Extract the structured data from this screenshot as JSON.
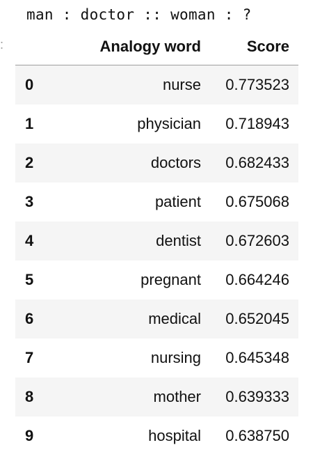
{
  "output": {
    "query": "man : doctor :: woman : ?",
    "edge_marker": ":"
  },
  "table": {
    "columns": {
      "index": "",
      "word": "Analogy word",
      "score": "Score"
    },
    "rows": [
      {
        "index": "0",
        "word": "nurse",
        "score": "0.773523"
      },
      {
        "index": "1",
        "word": "physician",
        "score": "0.718943"
      },
      {
        "index": "2",
        "word": "doctors",
        "score": "0.682433"
      },
      {
        "index": "3",
        "word": "patient",
        "score": "0.675068"
      },
      {
        "index": "4",
        "word": "dentist",
        "score": "0.672603"
      },
      {
        "index": "5",
        "word": "pregnant",
        "score": "0.664246"
      },
      {
        "index": "6",
        "word": "medical",
        "score": "0.652045"
      },
      {
        "index": "7",
        "word": "nursing",
        "score": "0.645348"
      },
      {
        "index": "8",
        "word": "mother",
        "score": "0.639333"
      },
      {
        "index": "9",
        "word": "hospital",
        "score": "0.638750"
      }
    ]
  }
}
